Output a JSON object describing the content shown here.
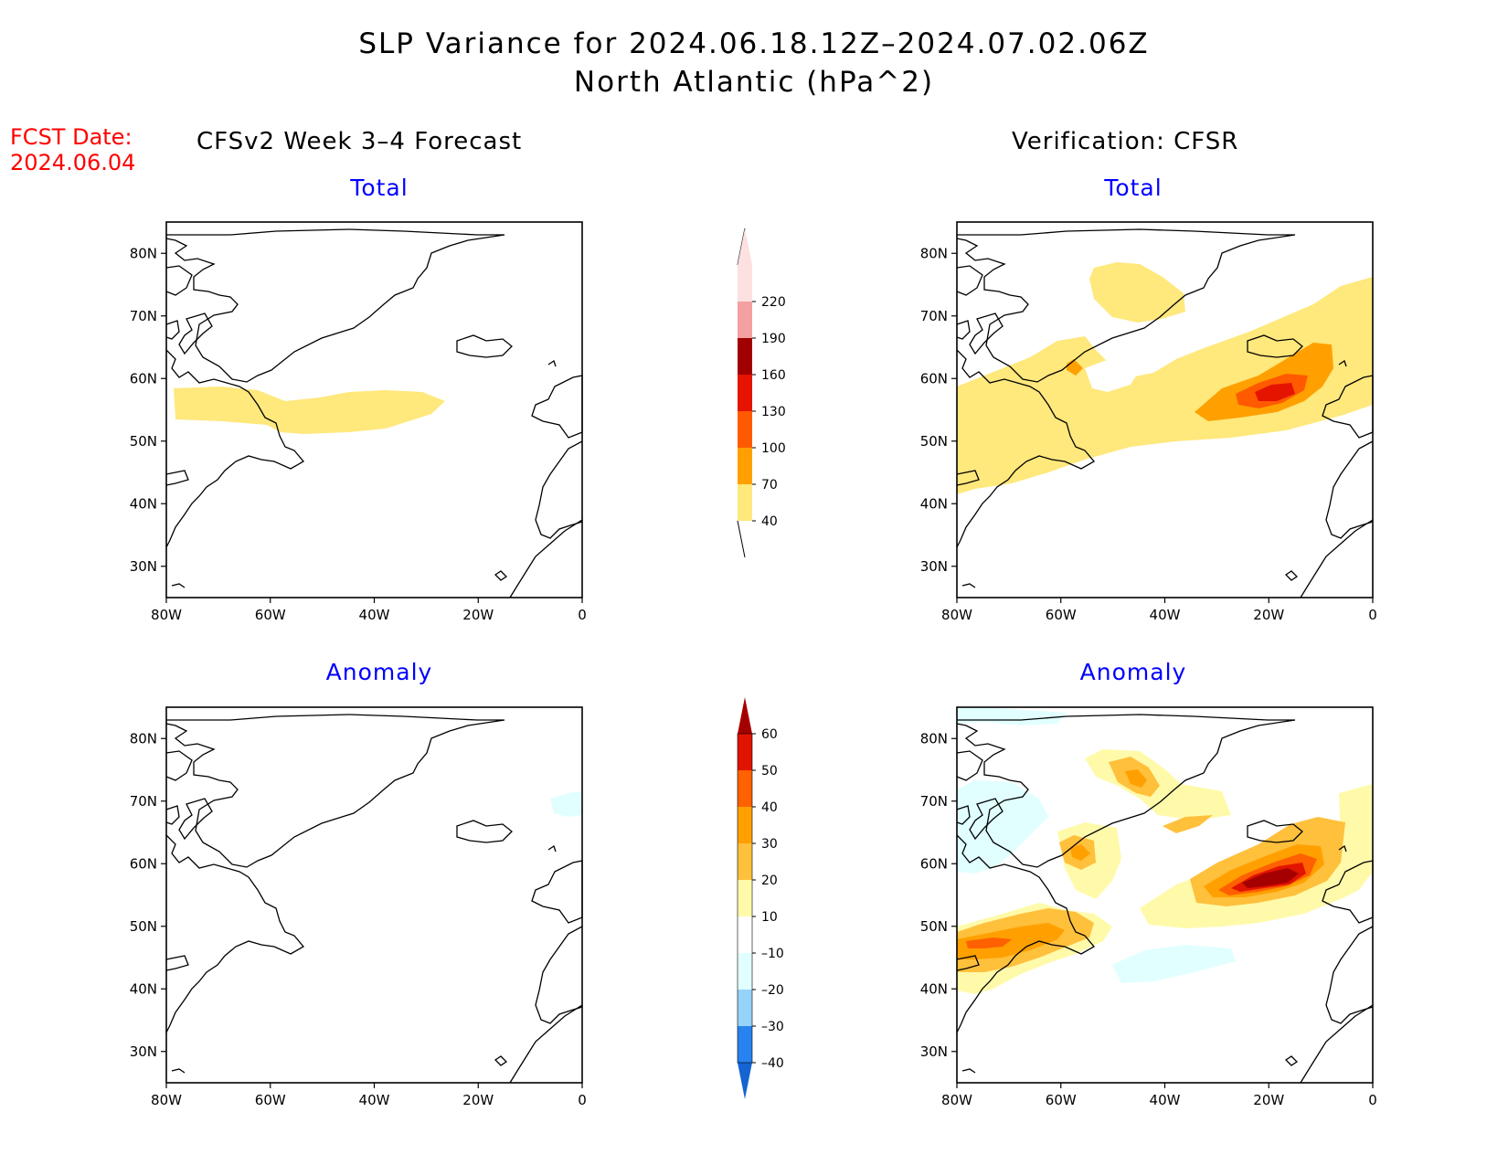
{
  "title": {
    "line1": "SLP Variance for 2024.06.18.12Z–2024.07.02.06Z",
    "line2": "North Atlantic (hPa^2)"
  },
  "fcst": {
    "label": "FCST Date:",
    "date": "2024.06.04"
  },
  "columns": [
    {
      "header": "CFSv2 Week 3–4 Forecast"
    },
    {
      "header": "Verification: CFSR"
    }
  ],
  "panel_titles": {
    "total": "Total",
    "anomaly": "Anomaly"
  },
  "axes": {
    "lon_labels": [
      "80W",
      "60W",
      "40W",
      "20W",
      "0"
    ],
    "lat_labels": [
      "80N",
      "70N",
      "60N",
      "50N",
      "40N",
      "30N"
    ],
    "lon_range": [
      -80,
      0
    ],
    "lat_range": [
      25,
      85
    ]
  },
  "total_colorbar": {
    "levels": [
      "40",
      "70",
      "100",
      "130",
      "160",
      "190",
      "220"
    ],
    "colors": [
      "#ffe87c",
      "#ffa000",
      "#ff5a00",
      "#e41400",
      "#a00000",
      "#f4a0a0",
      "#fde0e0"
    ]
  },
  "anomaly_colorbar": {
    "levels": [
      "–40",
      "–30",
      "–20",
      "–10",
      "10",
      "20",
      "30",
      "40",
      "50",
      "60"
    ],
    "colors": [
      "#1464d2",
      "#2882f0",
      "#96d2fa",
      "#e1ffff",
      "#ffffff",
      "#fffaaa",
      "#ffc03c",
      "#ffa000",
      "#ff6000",
      "#e11400",
      "#a50000"
    ]
  },
  "colors": {
    "title_accent": "#0000ff",
    "fcst": "#ff0000"
  }
}
